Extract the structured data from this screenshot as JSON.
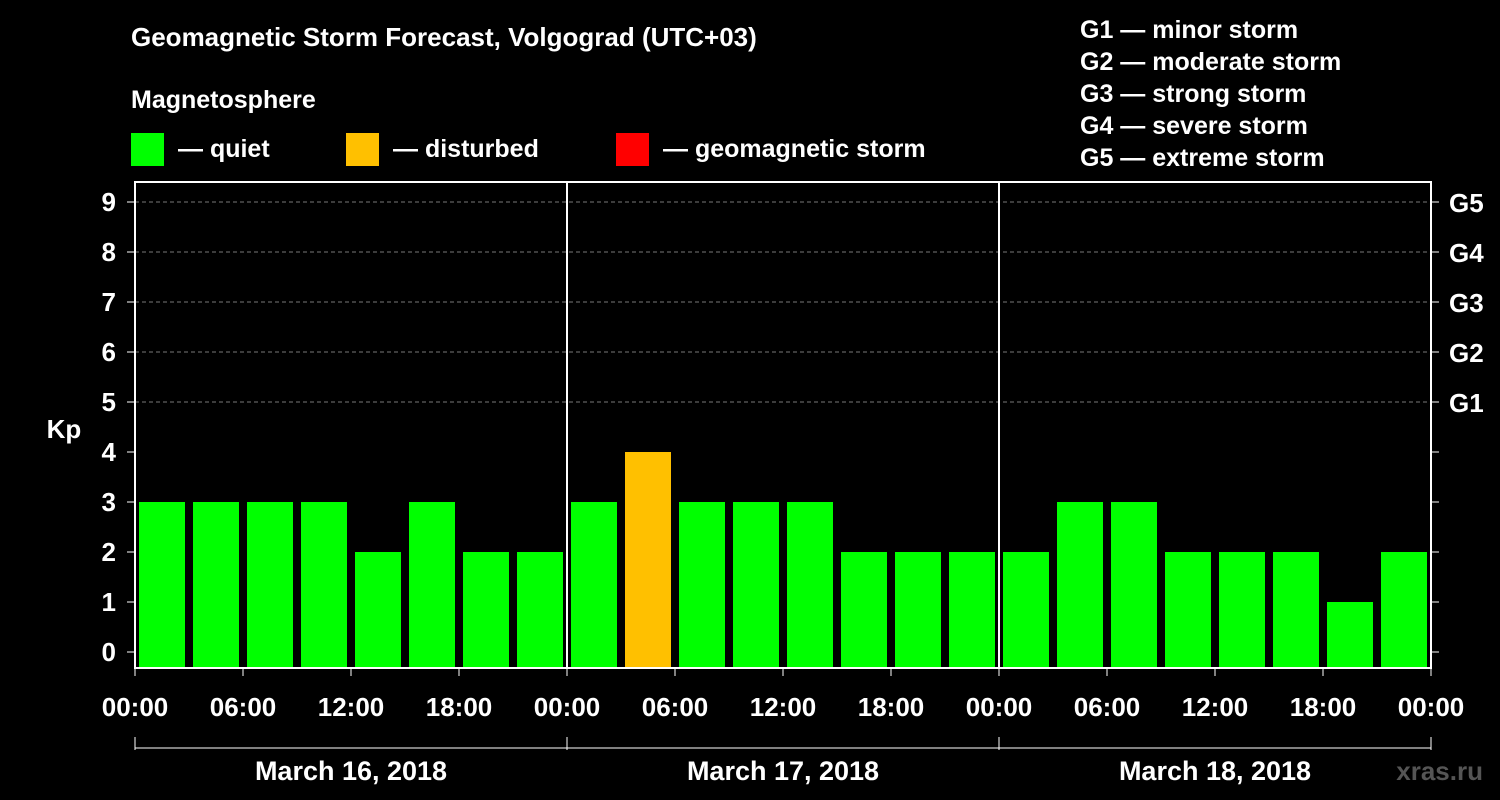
{
  "title": "Geomagnetic Storm Forecast, Volgograd (UTC+03)",
  "subtitle": "Magnetosphere",
  "legend": [
    {
      "label": "— quiet",
      "color": "#00ff00"
    },
    {
      "label": "— disturbed",
      "color": "#ffc000"
    },
    {
      "label": "— geomagnetic storm",
      "color": "#ff0000"
    }
  ],
  "storm_scale": [
    "G1 — minor storm",
    "G2 — moderate storm",
    "G3 — strong storm",
    "G4 — severe storm",
    "G5 — extreme storm"
  ],
  "watermark": "xras.ru",
  "chart_data": {
    "type": "bar",
    "title": "Geomagnetic Storm Forecast, Volgograd (UTC+03)",
    "ylabel": "Kp",
    "ylim": [
      0,
      9
    ],
    "y_ticks": [
      "0",
      "1",
      "2",
      "3",
      "4",
      "5",
      "6",
      "7",
      "8",
      "9"
    ],
    "right_axis_ticks": [
      {
        "kp": 5,
        "label": "G1"
      },
      {
        "kp": 6,
        "label": "G2"
      },
      {
        "kp": 7,
        "label": "G3"
      },
      {
        "kp": 8,
        "label": "G4"
      },
      {
        "kp": 9,
        "label": "G5"
      }
    ],
    "x_tick_labels": [
      "00:00",
      "06:00",
      "12:00",
      "18:00",
      "00:00",
      "06:00",
      "12:00",
      "18:00",
      "00:00",
      "06:00",
      "12:00",
      "18:00",
      "00:00"
    ],
    "days": [
      "March 16, 2018",
      "March 17, 2018",
      "March 18, 2018"
    ],
    "grid": true,
    "colors": {
      "quiet": "#00ff00",
      "disturbed": "#ffc000",
      "storm": "#ff0000"
    },
    "series": [
      {
        "day": "March 16, 2018",
        "kp": [
          3,
          3,
          3,
          3,
          2,
          3,
          2,
          2
        ],
        "status": [
          "quiet",
          "quiet",
          "quiet",
          "quiet",
          "quiet",
          "quiet",
          "quiet",
          "quiet"
        ]
      },
      {
        "day": "March 17, 2018",
        "kp": [
          3,
          4,
          3,
          3,
          3,
          2,
          2,
          2
        ],
        "status": [
          "quiet",
          "disturbed",
          "quiet",
          "quiet",
          "quiet",
          "quiet",
          "quiet",
          "quiet"
        ]
      },
      {
        "day": "March 18, 2018",
        "kp": [
          2,
          3,
          3,
          2,
          2,
          2,
          1,
          2
        ],
        "status": [
          "quiet",
          "quiet",
          "quiet",
          "quiet",
          "quiet",
          "quiet",
          "quiet",
          "quiet"
        ]
      }
    ]
  }
}
